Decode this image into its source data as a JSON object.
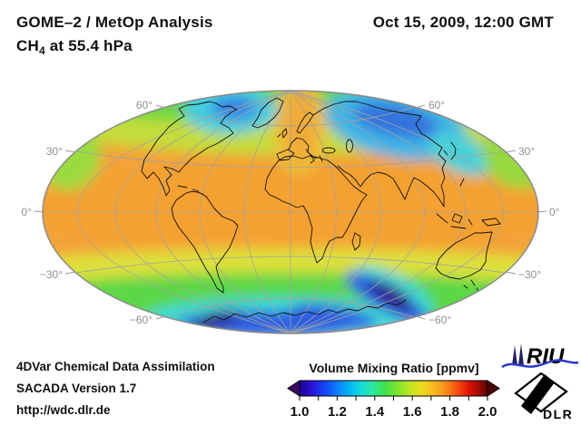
{
  "header": {
    "title_line1": "GOME–2 / MetOp Analysis",
    "species": "CH",
    "species_sub": "4",
    "level_text": " at 55.4 hPa",
    "datetime": "Oct 15, 2009, 12:00 GMT"
  },
  "map": {
    "projection": "hammer-ellipse",
    "lat_left": [
      "60°",
      "30°",
      "0°",
      "−30°",
      "−60°"
    ],
    "lat_right": [
      "60°",
      "30°",
      "0°",
      "−30°",
      "−60°"
    ],
    "region_colors": {
      "tropics_orange": "#f4a337",
      "midlat_yellow_green": "#c3dc3a",
      "high_north_green": "#67d644",
      "north_cyan_patches": "#45cfe0",
      "north_blue_core": "#3572de",
      "south_green_band": "#5bd747",
      "antarctic_cyan_ring": "#3fdad6",
      "antarctic_blue_arc": "#2e5ae2",
      "antarctic_dark_core": "#3c0a74"
    }
  },
  "colorbar": {
    "title": "Volume Mixing Ratio [ppmv]",
    "ticks": [
      "1.0",
      "1.2",
      "1.4",
      "1.6",
      "1.8",
      "2.0"
    ],
    "min": 1.0,
    "max": 2.0,
    "arrow_left_color": "#3a0764",
    "arrow_right_color": "#4c0303",
    "gradient": [
      {
        "o": "0%",
        "c": "#1c0096"
      },
      {
        "o": "6%",
        "c": "#2a10d0"
      },
      {
        "o": "13%",
        "c": "#1540f5"
      },
      {
        "o": "20%",
        "c": "#0b80fa"
      },
      {
        "o": "27%",
        "c": "#00b9f2"
      },
      {
        "o": "33%",
        "c": "#16dcd8"
      },
      {
        "o": "39%",
        "c": "#2ee8a0"
      },
      {
        "o": "45%",
        "c": "#3ce24d"
      },
      {
        "o": "52%",
        "c": "#7de42e"
      },
      {
        "o": "58%",
        "c": "#b8e423"
      },
      {
        "o": "64%",
        "c": "#e7df1e"
      },
      {
        "o": "70%",
        "c": "#f7c11e"
      },
      {
        "o": "76%",
        "c": "#f99c1b"
      },
      {
        "o": "81%",
        "c": "#f96c13"
      },
      {
        "o": "86%",
        "c": "#f23b0e"
      },
      {
        "o": "90%",
        "c": "#de1207"
      },
      {
        "o": "95%",
        "c": "#a60b04"
      },
      {
        "o": "100%",
        "c": "#5c0200"
      }
    ]
  },
  "footer": {
    "line1": "4DVar Chemical Data Assimilation",
    "line2": "SACADA Version 1.7",
    "line3": "http://wdc.dlr.de"
  },
  "logos": {
    "riu_text": "RIU",
    "dlr_text": "DLR",
    "riu_wave_color": "#2a3ad0",
    "riu_cathedral_color": "#232064"
  },
  "chart_data": {
    "type": "heatmap",
    "title": "CH4 volume mixing ratio at 55.4 hPa, Oct 15, 2009, 12:00 GMT",
    "units": "ppmv",
    "scale_min": 1.0,
    "scale_max": 2.0,
    "scale_ticks": [
      1.0,
      1.2,
      1.4,
      1.6,
      1.8,
      2.0
    ],
    "regions": [
      {
        "region": "tropics and subtropics (global band)",
        "value_ppmv": 1.65
      },
      {
        "region": "northern mid-latitudes",
        "value_ppmv": 1.5
      },
      {
        "region": "Scandinavia/pole orange tongue",
        "value_ppmv": 1.6
      },
      {
        "region": "Greenland/Canada polar patch",
        "value_ppmv": 1.3
      },
      {
        "region": "Siberia polar patch",
        "value_ppmv": 1.25
      },
      {
        "region": "southern mid-latitude green band",
        "value_ppmv": 1.45
      },
      {
        "region": "antarctic cyan ring",
        "value_ppmv": 1.3
      },
      {
        "region": "antarctic vortex blue arc",
        "value_ppmv": 1.15
      },
      {
        "region": "antarctic vortex dark cores",
        "value_ppmv": 1.02
      }
    ]
  }
}
